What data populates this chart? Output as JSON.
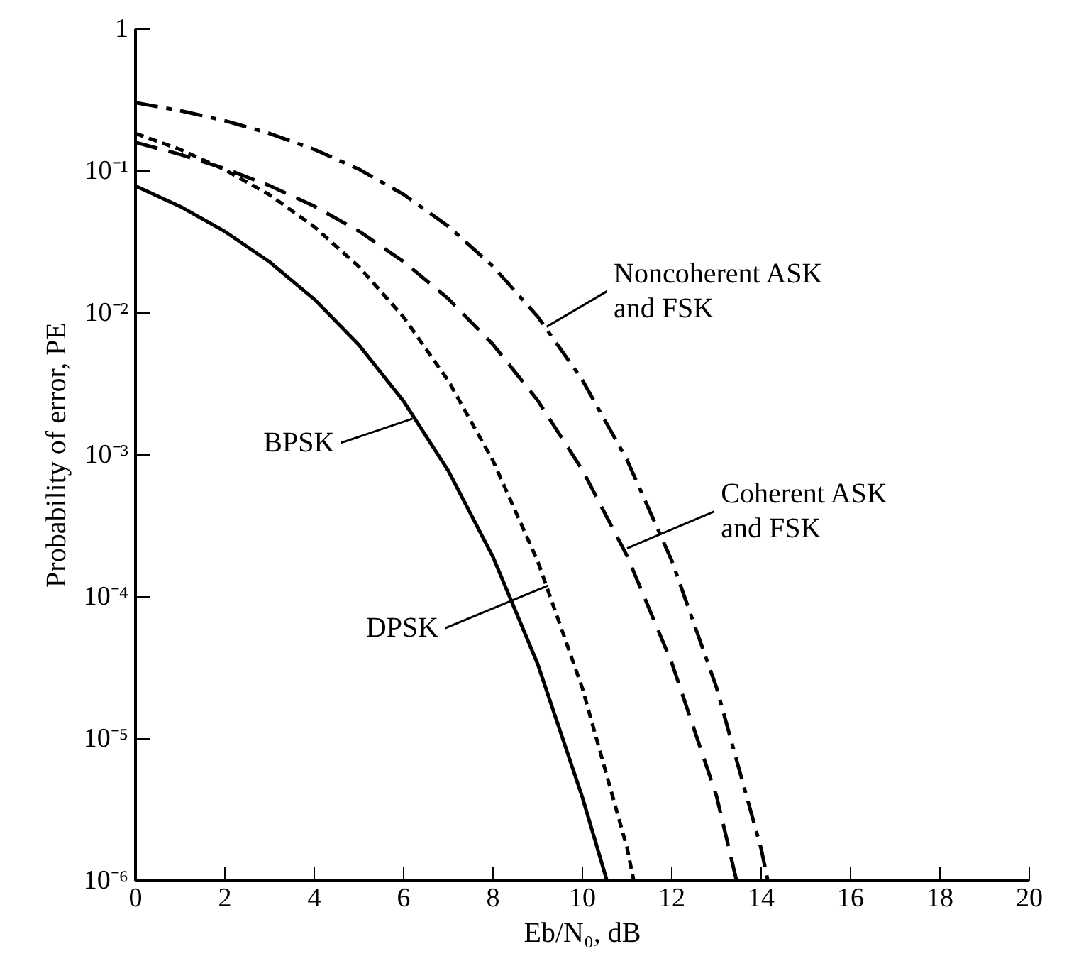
{
  "chart_data": {
    "type": "line",
    "xlabel": "Eb/N₀, dB",
    "ylabel": "Probability of error, PE",
    "log": "y",
    "grid": false,
    "marker": "none",
    "xlim": [
      0,
      20
    ],
    "xticks": [
      0,
      2,
      4,
      6,
      8,
      10,
      12,
      14,
      16,
      18,
      20
    ],
    "ylim": [
      1e-06,
      1
    ],
    "yticks": [
      {
        "value": 1e-06,
        "label": "10⁻⁶"
      },
      {
        "value": 1e-05,
        "label": "10⁻⁵"
      },
      {
        "value": 0.0001,
        "label": "10⁻⁴"
      },
      {
        "value": 0.001,
        "label": "10⁻³"
      },
      {
        "value": 0.01,
        "label": "10⁻²"
      },
      {
        "value": 0.1,
        "label": "10⁻¹"
      },
      {
        "value": 1,
        "label": "1"
      }
    ],
    "series": [
      {
        "color": "#000000",
        "line_style": "solid",
        "x": [
          0,
          1,
          2,
          3,
          4,
          5,
          6,
          7,
          8,
          9,
          10,
          10.55
        ],
        "values": [
          0.0786,
          0.0563,
          0.0375,
          0.0229,
          0.0125,
          0.00595,
          0.00239,
          0.000773,
          0.000191,
          3.36e-05,
          3.87e-06,
          1e-06
        ]
      },
      {
        "color": "#000000",
        "line_style": "dotted",
        "x": [
          0,
          1,
          2,
          3,
          4,
          5,
          6,
          7,
          8,
          9,
          10,
          11,
          11.15
        ],
        "values": [
          0.184,
          0.142,
          0.102,
          0.068,
          0.0405,
          0.0212,
          0.00935,
          0.00333,
          0.00091,
          0.000178,
          2.27e-05,
          1.7e-06,
          1e-06
        ]
      },
      {
        "color": "#000000",
        "line_style": "dashed",
        "x": [
          0,
          1,
          2,
          3,
          4,
          5,
          6,
          7,
          8,
          9,
          10,
          11,
          12,
          13,
          13.45
        ],
        "values": [
          0.159,
          0.131,
          0.104,
          0.0789,
          0.0565,
          0.0377,
          0.023,
          0.0126,
          0.006,
          0.00242,
          0.000783,
          0.000194,
          3.43e-05,
          3.97e-06,
          1e-06
        ]
      },
      {
        "color": "#000000",
        "line_style": "dashdot",
        "x": [
          0,
          1,
          2,
          3,
          4,
          5,
          6,
          7,
          8,
          9,
          10,
          11,
          12,
          13,
          14,
          14.15
        ],
        "values": [
          0.303,
          0.266,
          0.226,
          0.184,
          0.142,
          0.103,
          0.0684,
          0.0408,
          0.0213,
          0.00943,
          0.00337,
          0.00092,
          0.00018,
          2.3e-05,
          1.68e-06,
          1e-06
        ]
      }
    ],
    "annotations": [
      {
        "text": "Noncoherent ASK\nand FSK",
        "x": 9.2,
        "y": 0.008
      },
      {
        "text": "Coherent ASK\nand FSK",
        "x": 11.0,
        "y": 0.00022
      },
      {
        "text": "BPSK",
        "x": 6.2,
        "y": 0.0018
      },
      {
        "text": "DPSK",
        "x": 9.23,
        "y": 0.00012
      }
    ]
  }
}
